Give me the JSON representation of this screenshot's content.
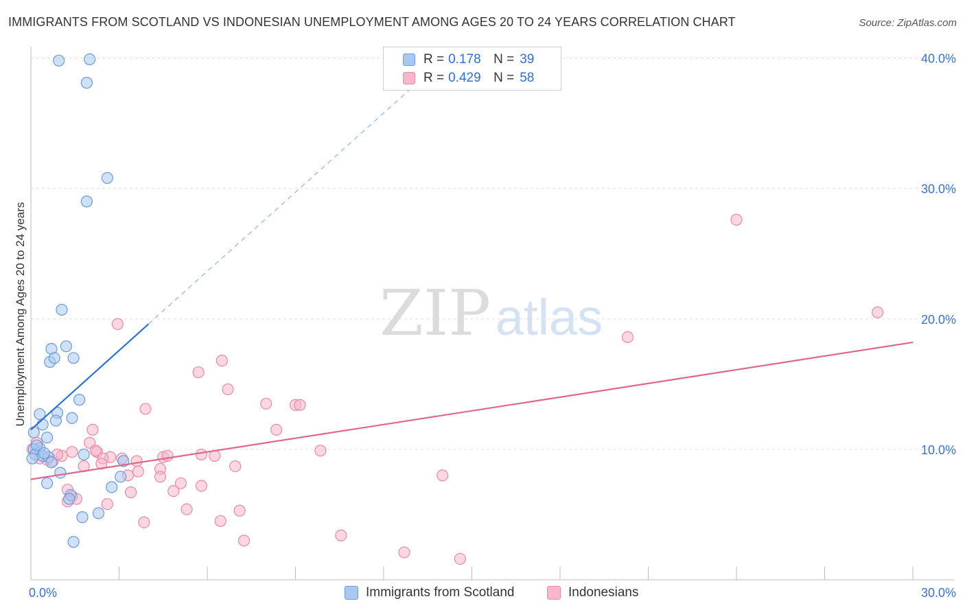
{
  "title": "IMMIGRANTS FROM SCOTLAND VS INDONESIAN UNEMPLOYMENT AMONG AGES 20 TO 24 YEARS CORRELATION CHART",
  "source": "Source: ZipAtlas.com",
  "watermark": {
    "zip": "ZIP",
    "atlas": "atlas"
  },
  "legend": {
    "r_label": "R =",
    "n_label": "N =",
    "rows": [
      {
        "r": "0.178",
        "n": "39"
      },
      {
        "r": "0.429",
        "n": "58"
      }
    ]
  },
  "colors": {
    "scotland_fill": "#a9c8f0",
    "scotland_stroke": "#6a9ad8",
    "scotland_line": "#2f6fd0",
    "indonesian_fill": "#f7b6cb",
    "indonesian_stroke": "#e68aa8",
    "indonesian_line": "#e06592",
    "tick_text": "#3a72c8",
    "grid": "#dddddd"
  },
  "chart_data": {
    "type": "scatter",
    "title": "IMMIGRANTS FROM SCOTLAND VS INDONESIAN UNEMPLOYMENT AMONG AGES 20 TO 24 YEARS CORRELATION CHART",
    "xlabel": "",
    "ylabel": "Unemployment Among Ages 20 to 24 years",
    "xlim": [
      0,
      30
    ],
    "ylim": [
      0,
      40.5
    ],
    "x_tick_labels": [
      "0.0%",
      "30.0%"
    ],
    "y_ticks": [
      10,
      20,
      30,
      40
    ],
    "y_tick_labels": [
      "10.0%",
      "20.0%",
      "30.0%",
      "40.0%"
    ],
    "grid": true,
    "series": [
      {
        "name": "Immigrants from Scotland",
        "points": [
          [
            0.95,
            39.8
          ],
          [
            2.0,
            39.9
          ],
          [
            1.9,
            38.1
          ],
          [
            2.6,
            30.8
          ],
          [
            1.9,
            29.0
          ],
          [
            1.05,
            20.7
          ],
          [
            0.7,
            17.7
          ],
          [
            1.2,
            17.9
          ],
          [
            1.45,
            17.0
          ],
          [
            0.65,
            16.7
          ],
          [
            0.8,
            17.0
          ],
          [
            1.65,
            13.8
          ],
          [
            0.3,
            12.7
          ],
          [
            0.9,
            12.8
          ],
          [
            0.85,
            12.2
          ],
          [
            1.4,
            12.4
          ],
          [
            0.4,
            11.9
          ],
          [
            0.1,
            11.3
          ],
          [
            0.55,
            10.9
          ],
          [
            0.3,
            10.1
          ],
          [
            0.1,
            10.0
          ],
          [
            0.15,
            9.6
          ],
          [
            0.4,
            9.5
          ],
          [
            0.6,
            9.4
          ],
          [
            0.05,
            9.3
          ],
          [
            1.8,
            9.6
          ],
          [
            0.7,
            9.0
          ],
          [
            3.15,
            9.1
          ],
          [
            1.0,
            8.2
          ],
          [
            3.05,
            7.9
          ],
          [
            0.55,
            7.4
          ],
          [
            2.75,
            7.1
          ],
          [
            1.35,
            6.5
          ],
          [
            1.3,
            6.2
          ],
          [
            2.3,
            5.1
          ],
          [
            1.75,
            4.8
          ],
          [
            1.45,
            2.9
          ],
          [
            0.2,
            10.3
          ],
          [
            0.45,
            9.7
          ]
        ]
      },
      {
        "name": "Indonesians",
        "points": [
          [
            24.0,
            27.6
          ],
          [
            28.8,
            20.5
          ],
          [
            20.3,
            18.6
          ],
          [
            2.95,
            19.6
          ],
          [
            6.5,
            16.8
          ],
          [
            5.7,
            15.9
          ],
          [
            6.7,
            14.6
          ],
          [
            8.0,
            13.5
          ],
          [
            9.0,
            13.4
          ],
          [
            9.15,
            13.4
          ],
          [
            3.9,
            13.1
          ],
          [
            8.35,
            11.5
          ],
          [
            2.1,
            11.5
          ],
          [
            2.0,
            10.5
          ],
          [
            0.2,
            10.5
          ],
          [
            0.05,
            10.0
          ],
          [
            2.25,
            9.8
          ],
          [
            1.4,
            9.8
          ],
          [
            9.85,
            9.9
          ],
          [
            5.8,
            9.6
          ],
          [
            6.25,
            9.5
          ],
          [
            4.5,
            9.4
          ],
          [
            4.65,
            9.5
          ],
          [
            2.7,
            9.4
          ],
          [
            3.1,
            9.3
          ],
          [
            1.05,
            9.5
          ],
          [
            0.3,
            9.3
          ],
          [
            0.55,
            9.2
          ],
          [
            0.75,
            9.1
          ],
          [
            2.45,
            9.3
          ],
          [
            3.6,
            9.1
          ],
          [
            2.4,
            8.9
          ],
          [
            1.8,
            8.7
          ],
          [
            6.95,
            8.7
          ],
          [
            4.4,
            8.5
          ],
          [
            3.65,
            8.3
          ],
          [
            3.3,
            8.0
          ],
          [
            4.4,
            7.9
          ],
          [
            14.0,
            8.0
          ],
          [
            5.1,
            7.4
          ],
          [
            5.8,
            7.2
          ],
          [
            1.25,
            6.9
          ],
          [
            3.4,
            6.7
          ],
          [
            4.85,
            6.8
          ],
          [
            1.4,
            6.4
          ],
          [
            1.55,
            6.2
          ],
          [
            1.25,
            6.0
          ],
          [
            2.6,
            5.8
          ],
          [
            5.3,
            5.4
          ],
          [
            7.1,
            5.3
          ],
          [
            3.85,
            4.4
          ],
          [
            6.45,
            4.5
          ],
          [
            7.25,
            3.0
          ],
          [
            10.55,
            3.4
          ],
          [
            12.7,
            2.1
          ],
          [
            14.6,
            1.6
          ],
          [
            0.9,
            9.6
          ],
          [
            2.2,
            9.9
          ]
        ]
      }
    ],
    "trend_lines": [
      {
        "series": "Immigrants from Scotland",
        "solid": [
          [
            0,
            11.5
          ],
          [
            4.0,
            19.6
          ]
        ],
        "dashed": [
          [
            4.0,
            19.6
          ],
          [
            13.0,
            37.8
          ]
        ]
      },
      {
        "series": "Indonesians",
        "solid": [
          [
            0,
            7.7
          ],
          [
            30,
            18.2
          ]
        ]
      }
    ]
  }
}
